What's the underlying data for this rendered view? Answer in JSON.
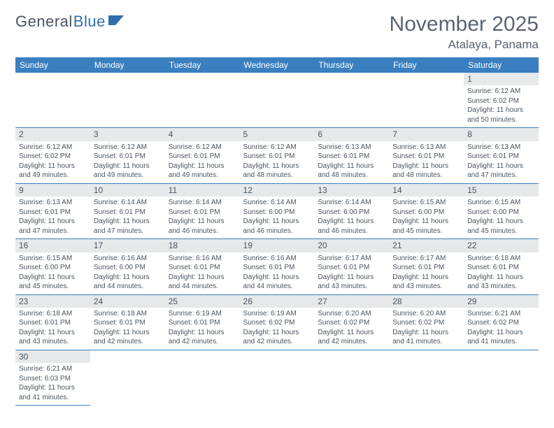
{
  "logo": {
    "text1": "General",
    "text2": "Blue"
  },
  "title": {
    "month": "November 2025",
    "location": "Atalaya, Panama"
  },
  "colors": {
    "header_bg": "#3a7fbf",
    "header_fg": "#ffffff",
    "daynum_bg": "#e6e8ea",
    "border": "#3a7fbf",
    "text": "#4a5560"
  },
  "weekdays": [
    "Sunday",
    "Monday",
    "Tuesday",
    "Wednesday",
    "Thursday",
    "Friday",
    "Saturday"
  ],
  "weeks": [
    [
      {
        "empty": true
      },
      {
        "empty": true
      },
      {
        "empty": true
      },
      {
        "empty": true
      },
      {
        "empty": true
      },
      {
        "empty": true
      },
      {
        "n": "1",
        "sunrise": "Sunrise: 6:12 AM",
        "sunset": "Sunset: 6:02 PM",
        "daylight": "Daylight: 11 hours and 50 minutes."
      }
    ],
    [
      {
        "n": "2",
        "sunrise": "Sunrise: 6:12 AM",
        "sunset": "Sunset: 6:02 PM",
        "daylight": "Daylight: 11 hours and 49 minutes."
      },
      {
        "n": "3",
        "sunrise": "Sunrise: 6:12 AM",
        "sunset": "Sunset: 6:01 PM",
        "daylight": "Daylight: 11 hours and 49 minutes."
      },
      {
        "n": "4",
        "sunrise": "Sunrise: 6:12 AM",
        "sunset": "Sunset: 6:01 PM",
        "daylight": "Daylight: 11 hours and 49 minutes."
      },
      {
        "n": "5",
        "sunrise": "Sunrise: 6:12 AM",
        "sunset": "Sunset: 6:01 PM",
        "daylight": "Daylight: 11 hours and 48 minutes."
      },
      {
        "n": "6",
        "sunrise": "Sunrise: 6:13 AM",
        "sunset": "Sunset: 6:01 PM",
        "daylight": "Daylight: 11 hours and 48 minutes."
      },
      {
        "n": "7",
        "sunrise": "Sunrise: 6:13 AM",
        "sunset": "Sunset: 6:01 PM",
        "daylight": "Daylight: 11 hours and 48 minutes."
      },
      {
        "n": "8",
        "sunrise": "Sunrise: 6:13 AM",
        "sunset": "Sunset: 6:01 PM",
        "daylight": "Daylight: 11 hours and 47 minutes."
      }
    ],
    [
      {
        "n": "9",
        "sunrise": "Sunrise: 6:13 AM",
        "sunset": "Sunset: 6:01 PM",
        "daylight": "Daylight: 11 hours and 47 minutes."
      },
      {
        "n": "10",
        "sunrise": "Sunrise: 6:14 AM",
        "sunset": "Sunset: 6:01 PM",
        "daylight": "Daylight: 11 hours and 47 minutes."
      },
      {
        "n": "11",
        "sunrise": "Sunrise: 6:14 AM",
        "sunset": "Sunset: 6:01 PM",
        "daylight": "Daylight: 11 hours and 46 minutes."
      },
      {
        "n": "12",
        "sunrise": "Sunrise: 6:14 AM",
        "sunset": "Sunset: 6:00 PM",
        "daylight": "Daylight: 11 hours and 46 minutes."
      },
      {
        "n": "13",
        "sunrise": "Sunrise: 6:14 AM",
        "sunset": "Sunset: 6:00 PM",
        "daylight": "Daylight: 11 hours and 46 minutes."
      },
      {
        "n": "14",
        "sunrise": "Sunrise: 6:15 AM",
        "sunset": "Sunset: 6:00 PM",
        "daylight": "Daylight: 11 hours and 45 minutes."
      },
      {
        "n": "15",
        "sunrise": "Sunrise: 6:15 AM",
        "sunset": "Sunset: 6:00 PM",
        "daylight": "Daylight: 11 hours and 45 minutes."
      }
    ],
    [
      {
        "n": "16",
        "sunrise": "Sunrise: 6:15 AM",
        "sunset": "Sunset: 6:00 PM",
        "daylight": "Daylight: 11 hours and 45 minutes."
      },
      {
        "n": "17",
        "sunrise": "Sunrise: 6:16 AM",
        "sunset": "Sunset: 6:00 PM",
        "daylight": "Daylight: 11 hours and 44 minutes."
      },
      {
        "n": "18",
        "sunrise": "Sunrise: 6:16 AM",
        "sunset": "Sunset: 6:01 PM",
        "daylight": "Daylight: 11 hours and 44 minutes."
      },
      {
        "n": "19",
        "sunrise": "Sunrise: 6:16 AM",
        "sunset": "Sunset: 6:01 PM",
        "daylight": "Daylight: 11 hours and 44 minutes."
      },
      {
        "n": "20",
        "sunrise": "Sunrise: 6:17 AM",
        "sunset": "Sunset: 6:01 PM",
        "daylight": "Daylight: 11 hours and 43 minutes."
      },
      {
        "n": "21",
        "sunrise": "Sunrise: 6:17 AM",
        "sunset": "Sunset: 6:01 PM",
        "daylight": "Daylight: 11 hours and 43 minutes."
      },
      {
        "n": "22",
        "sunrise": "Sunrise: 6:18 AM",
        "sunset": "Sunset: 6:01 PM",
        "daylight": "Daylight: 11 hours and 43 minutes."
      }
    ],
    [
      {
        "n": "23",
        "sunrise": "Sunrise: 6:18 AM",
        "sunset": "Sunset: 6:01 PM",
        "daylight": "Daylight: 11 hours and 43 minutes."
      },
      {
        "n": "24",
        "sunrise": "Sunrise: 6:18 AM",
        "sunset": "Sunset: 6:01 PM",
        "daylight": "Daylight: 11 hours and 42 minutes."
      },
      {
        "n": "25",
        "sunrise": "Sunrise: 6:19 AM",
        "sunset": "Sunset: 6:01 PM",
        "daylight": "Daylight: 11 hours and 42 minutes."
      },
      {
        "n": "26",
        "sunrise": "Sunrise: 6:19 AM",
        "sunset": "Sunset: 6:02 PM",
        "daylight": "Daylight: 11 hours and 42 minutes."
      },
      {
        "n": "27",
        "sunrise": "Sunrise: 6:20 AM",
        "sunset": "Sunset: 6:02 PM",
        "daylight": "Daylight: 11 hours and 42 minutes."
      },
      {
        "n": "28",
        "sunrise": "Sunrise: 6:20 AM",
        "sunset": "Sunset: 6:02 PM",
        "daylight": "Daylight: 11 hours and 41 minutes."
      },
      {
        "n": "29",
        "sunrise": "Sunrise: 6:21 AM",
        "sunset": "Sunset: 6:02 PM",
        "daylight": "Daylight: 11 hours and 41 minutes."
      }
    ],
    [
      {
        "n": "30",
        "sunrise": "Sunrise: 6:21 AM",
        "sunset": "Sunset: 6:03 PM",
        "daylight": "Daylight: 11 hours and 41 minutes."
      },
      {
        "empty": true
      },
      {
        "empty": true
      },
      {
        "empty": true
      },
      {
        "empty": true
      },
      {
        "empty": true
      },
      {
        "empty": true
      }
    ]
  ]
}
